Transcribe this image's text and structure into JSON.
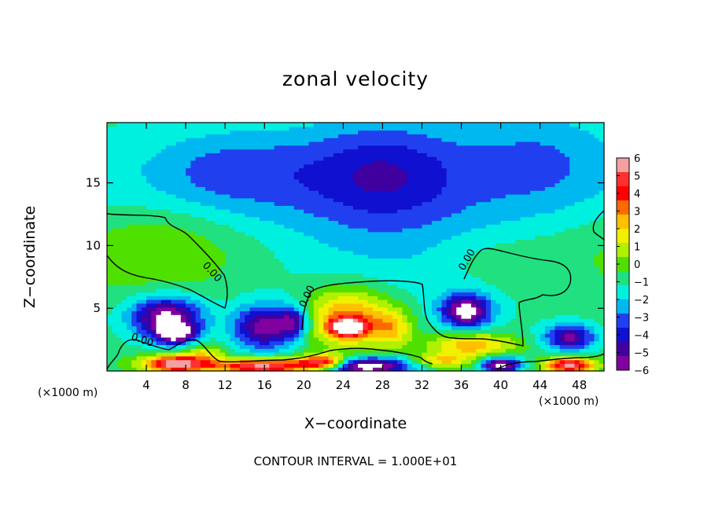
{
  "chart_data": {
    "type": "heatmap",
    "title": "zonal velocity",
    "xlabel": "X−coordinate",
    "ylabel": "Z−coordinate",
    "x_unit_left": "(×1000 m)",
    "x_unit_right": "(×1000 m)",
    "x_ticks": [
      "4",
      "8",
      "12",
      "16",
      "20",
      "24",
      "28",
      "32",
      "36",
      "40",
      "44",
      "48"
    ],
    "x_tick_values": [
      4,
      8,
      12,
      16,
      20,
      24,
      28,
      32,
      36,
      40,
      44,
      48
    ],
    "xlim": [
      0,
      50.5
    ],
    "y_ticks": [
      "5",
      "10",
      "15"
    ],
    "y_tick_values": [
      5,
      10,
      15
    ],
    "ylim": [
      0,
      19.8
    ],
    "contour_note": "CONTOUR INTERVAL = 1.000E+01",
    "contour_label": "0.00",
    "colorbar": {
      "labels": [
        "6",
        "5",
        "4",
        "3",
        "2",
        "1",
        "0",
        "−1",
        "−2",
        "−3",
        "−4",
        "−5",
        "−6"
      ],
      "values": [
        6,
        5,
        4,
        3,
        2,
        1,
        0,
        -1,
        -2,
        -3,
        -4,
        -5,
        -6
      ],
      "colors": [
        "#f4a0a0",
        "#ff3030",
        "#ff0000",
        "#ff6a00",
        "#ffc000",
        "#f0f000",
        "#b0f000",
        "#50e000",
        "#20e080",
        "#00f0e0",
        "#00b8f0",
        "#2040f0",
        "#1010d0",
        "#4000a0",
        "#8000a0"
      ]
    },
    "field_blobs": [
      {
        "x": 25,
        "z": 12,
        "rx": 40,
        "rz": 8,
        "v": -2.0
      },
      {
        "x": 28,
        "z": 16,
        "rx": 8,
        "rz": 4,
        "v": -2.4
      },
      {
        "x": 44,
        "z": 17,
        "rx": 8,
        "rz": 4,
        "v": -1.4
      },
      {
        "x": 6,
        "z": 10,
        "rx": 7,
        "rz": 3.5,
        "v": 0.8
      },
      {
        "x": 38.5,
        "z": 9,
        "rx": 6,
        "rz": 2.5,
        "v": 0.6
      },
      {
        "x": 13,
        "z": 16,
        "rx": 8,
        "rz": 3,
        "v": -1.5
      },
      {
        "x": 6,
        "z": 4.3,
        "rx": 3.5,
        "rz": 1.6,
        "v": -5.5
      },
      {
        "x": 7,
        "z": 3,
        "rx": 2,
        "rz": 0.8,
        "v": -5.0
      },
      {
        "x": 16,
        "z": 3.5,
        "rx": 3,
        "rz": 1.7,
        "v": -4.8
      },
      {
        "x": 19,
        "z": 4,
        "rx": 1.6,
        "rz": 1.2,
        "v": -3.5
      },
      {
        "x": 36.5,
        "z": 4.8,
        "rx": 2.4,
        "rz": 1.3,
        "v": -5.8
      },
      {
        "x": 47,
        "z": 2.7,
        "rx": 2.5,
        "rz": 1.0,
        "v": -4.5
      },
      {
        "x": 24.5,
        "z": 4.3,
        "rx": 4.5,
        "rz": 2.4,
        "v": 4.3
      },
      {
        "x": 24.5,
        "z": 3.5,
        "rx": 1.8,
        "rz": 0.7,
        "v": 6.5
      },
      {
        "x": 29,
        "z": 3.5,
        "rx": 2.0,
        "rz": 1.5,
        "v": 2.5
      },
      {
        "x": 37,
        "z": 2.1,
        "rx": 4.5,
        "rz": 1.0,
        "v": 3.5
      },
      {
        "x": 7,
        "z": 0.6,
        "rx": 3.5,
        "rz": 0.7,
        "v": 6.5
      },
      {
        "x": 16,
        "z": 0.4,
        "rx": 5,
        "rz": 0.6,
        "v": 6.5
      },
      {
        "x": 47,
        "z": 0.5,
        "rx": 2.5,
        "rz": 0.6,
        "v": 6.5
      },
      {
        "x": 26,
        "z": 0.4,
        "rx": 5,
        "rz": 0.7,
        "v": -6.5
      },
      {
        "x": 40,
        "z": 0.5,
        "rx": 2,
        "rz": 0.6,
        "v": -6.0
      },
      {
        "x": 22,
        "z": 0.7,
        "rx": 2.5,
        "rz": 0.6,
        "v": 6.5
      },
      {
        "x": 10,
        "z": 1.5,
        "rx": 2,
        "rz": 0.8,
        "v": 2.0
      },
      {
        "x": 34,
        "z": 0.8,
        "rx": 3,
        "rz": 0.6,
        "v": 3.0
      }
    ]
  }
}
